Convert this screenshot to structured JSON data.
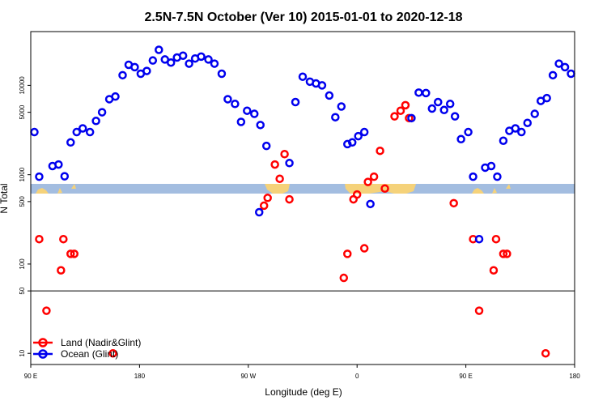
{
  "chart_data": {
    "type": "scatter",
    "title": "2.5N-7.5N October (Ver 10)   2015-01-01 to 2020-12-18",
    "xlabel": "Longitude (deg E)",
    "ylabel": "N Total",
    "x_axis": {
      "range": [
        90,
        450
      ],
      "ticks": [
        {
          "value": 90,
          "label": "90 E"
        },
        {
          "value": 180,
          "label": "180"
        },
        {
          "value": 270,
          "label": "90 W"
        },
        {
          "value": 360,
          "label": "0"
        },
        {
          "value": 450,
          "label": "90 E"
        },
        {
          "value": 540,
          "label": "180"
        }
      ],
      "xlim": [
        90,
        540
      ]
    },
    "y_axis": {
      "scale": "log",
      "ylim": [
        7.5,
        40000
      ],
      "ticks": [
        {
          "value": 10,
          "label": "10"
        },
        {
          "value": 50,
          "label": "50"
        },
        {
          "value": 100,
          "label": "100"
        },
        {
          "value": 500,
          "label": "500"
        },
        {
          "value": 1000,
          "label": "1000"
        },
        {
          "value": 5000,
          "label": "5000"
        },
        {
          "value": 10000,
          "label": "10000"
        }
      ],
      "reference_line": 50
    },
    "legend": {
      "placement": "bottom-left",
      "entries": [
        {
          "label": "Land (Nadir&Glint)",
          "color": "#ff0000"
        },
        {
          "label": "Ocean (Glint)",
          "color": "#0000ee"
        }
      ]
    },
    "colors": {
      "land": "#ff0000",
      "ocean": "#0000ee",
      "map_land": "#f5d27a",
      "map_ocean": "#a3bde0"
    },
    "series": [
      {
        "name": "Land (Nadir&Glint)",
        "color": "#ff0000",
        "points": [
          [
            97,
            190
          ],
          [
            103,
            30
          ],
          [
            115,
            85
          ],
          [
            117,
            190
          ],
          [
            123,
            130
          ],
          [
            126,
            130
          ],
          [
            158,
            10
          ],
          [
            283,
            450
          ],
          [
            286,
            550
          ],
          [
            292,
            1300
          ],
          [
            296,
            900
          ],
          [
            300,
            1700
          ],
          [
            304,
            530
          ],
          [
            349,
            70
          ],
          [
            352,
            130
          ],
          [
            357,
            530
          ],
          [
            360,
            600
          ],
          [
            366,
            150
          ],
          [
            369,
            830
          ],
          [
            374,
            950
          ],
          [
            379,
            1850
          ],
          [
            383,
            700
          ],
          [
            391,
            4500
          ],
          [
            396,
            5200
          ],
          [
            400,
            6000
          ],
          [
            403,
            4300
          ],
          [
            440,
            480
          ],
          [
            456,
            190
          ],
          [
            461,
            30
          ],
          [
            473,
            85
          ],
          [
            475,
            190
          ],
          [
            481,
            130
          ],
          [
            484,
            130
          ],
          [
            516,
            10
          ]
        ]
      },
      {
        "name": "Ocean (Glint)",
        "color": "#0000ee",
        "points": [
          [
            93,
            3000
          ],
          [
            97,
            950
          ],
          [
            108,
            1250
          ],
          [
            113,
            1300
          ],
          [
            118,
            960
          ],
          [
            123,
            2300
          ],
          [
            128,
            3000
          ],
          [
            133,
            3300
          ],
          [
            139,
            3000
          ],
          [
            144,
            4000
          ],
          [
            149,
            5000
          ],
          [
            155,
            7000
          ],
          [
            160,
            7500
          ],
          [
            166,
            13000
          ],
          [
            171,
            17000
          ],
          [
            176,
            16000
          ],
          [
            181,
            13500
          ],
          [
            186,
            14500
          ],
          [
            191,
            19000
          ],
          [
            196,
            25000
          ],
          [
            201,
            19500
          ],
          [
            206,
            18000
          ],
          [
            211,
            20500
          ],
          [
            216,
            21500
          ],
          [
            221,
            17500
          ],
          [
            226,
            20000
          ],
          [
            231,
            21000
          ],
          [
            237,
            19500
          ],
          [
            242,
            17500
          ],
          [
            248,
            13500
          ],
          [
            253,
            7000
          ],
          [
            259,
            6200
          ],
          [
            264,
            3900
          ],
          [
            269,
            5200
          ],
          [
            275,
            4800
          ],
          [
            280,
            3600
          ],
          [
            285,
            2100
          ],
          [
            279,
            380
          ],
          [
            304,
            1350
          ],
          [
            309,
            6500
          ],
          [
            315,
            12500
          ],
          [
            321,
            11000
          ],
          [
            326,
            10500
          ],
          [
            331,
            10000
          ],
          [
            337,
            7700
          ],
          [
            342,
            4400
          ],
          [
            347,
            5800
          ],
          [
            352,
            2200
          ],
          [
            356,
            2300
          ],
          [
            361,
            2700
          ],
          [
            366,
            3000
          ],
          [
            371,
            470
          ],
          [
            405,
            4300
          ],
          [
            411,
            8300
          ],
          [
            417,
            8200
          ],
          [
            422,
            5500
          ],
          [
            427,
            6500
          ],
          [
            432,
            5300
          ],
          [
            437,
            6200
          ],
          [
            441,
            4500
          ],
          [
            446,
            2500
          ],
          [
            452,
            3000
          ],
          [
            456,
            950
          ],
          [
            461,
            190
          ],
          [
            466,
            1200
          ],
          [
            471,
            1250
          ],
          [
            476,
            950
          ],
          [
            481,
            2400
          ],
          [
            486,
            3100
          ],
          [
            491,
            3300
          ],
          [
            496,
            3000
          ],
          [
            501,
            3800
          ],
          [
            507,
            4800
          ],
          [
            512,
            6700
          ],
          [
            517,
            7200
          ],
          [
            522,
            13000
          ],
          [
            527,
            17500
          ],
          [
            532,
            16000
          ],
          [
            537,
            13500
          ]
        ]
      }
    ]
  }
}
